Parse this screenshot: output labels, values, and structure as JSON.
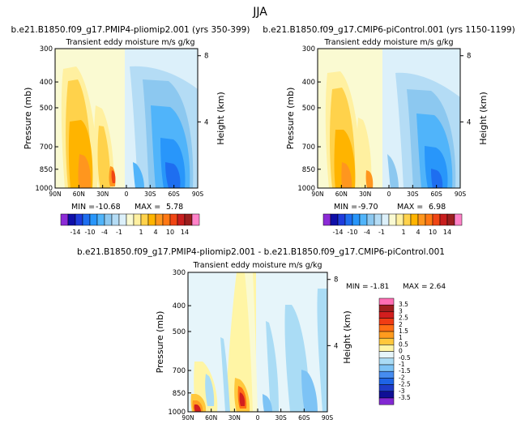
{
  "figure": {
    "title": "JJA"
  },
  "chart_data": [
    {
      "type": "heatmap",
      "id": "pliomip",
      "title": "b.e21.B1850.f09_g17.PMIP4-pliomip2.001 (yrs 350-399)",
      "subtitle": "Transient eddy moisture m/s g/kg",
      "ylabel": "Pressure (mb)",
      "y2label": "Height (km)",
      "x_ticks": [
        "90N",
        "60N",
        "30N",
        "0",
        "30S",
        "60S",
        "90S"
      ],
      "y_ticks": [
        "300",
        "400",
        "500",
        "700",
        "850",
        "1000"
      ],
      "y2_ticks": [
        "8",
        "4"
      ],
      "min_label": "MIN =",
      "min_value": "-10.68",
      "max_label": "MAX =",
      "max_value": "5.78"
    },
    {
      "type": "heatmap",
      "id": "picontrol",
      "title": "b.e21.B1850.f09_g17.CMIP6-piControl.001 (yrs 1150-1199)",
      "subtitle": "Transient eddy moisture m/s g/kg",
      "ylabel": "Pressure (mb)",
      "y2label": "Height (km)",
      "x_ticks": [
        "90N",
        "60N",
        "30N",
        "0",
        "30S",
        "60S",
        "90S"
      ],
      "y_ticks": [
        "300",
        "400",
        "500",
        "700",
        "850",
        "1000"
      ],
      "y2_ticks": [
        "8",
        "4"
      ],
      "min_label": "MIN =",
      "min_value": "-9.70",
      "max_label": "MAX =",
      "max_value": "6.98"
    },
    {
      "type": "heatmap",
      "id": "difference",
      "title": "b.e21.B1850.f09_g17.PMIP4-pliomip2.001 - b.e21.B1850.f09_g17.CMIP6-piControl.001",
      "subtitle": "Transient eddy moisture m/s g/kg",
      "ylabel": "Pressure (mb)",
      "y2label": "Height (km)",
      "x_ticks": [
        "90N",
        "60N",
        "30N",
        "0",
        "30S",
        "60S",
        "90S"
      ],
      "y_ticks": [
        "300",
        "400",
        "500",
        "700",
        "850",
        "1000"
      ],
      "y2_ticks": [
        "8",
        "4"
      ],
      "min_label": "MIN =",
      "min_value": "-1.81",
      "max_label": "MAX =",
      "max_value": "2.64"
    }
  ],
  "colorbar_main": {
    "labels": [
      "-14",
      "-10",
      "-4",
      "-1",
      "1",
      "4",
      "10",
      "14"
    ],
    "colors": [
      "#8c2bd6",
      "#0f0fa8",
      "#1e3cdc",
      "#1e6ef0",
      "#2896fa",
      "#50b4fa",
      "#8cc8f0",
      "#b4dcf5",
      "#dcf0fa",
      "#fafad2",
      "#fff0a0",
      "#ffd24b",
      "#ffb400",
      "#ff961e",
      "#ff7814",
      "#f04614",
      "#c81e1e",
      "#9b1e1e",
      "#ff82c8"
    ]
  },
  "colorbar_diff": {
    "labels": [
      "3.5",
      "3",
      "2.5",
      "2",
      "1.5",
      "1",
      "0.5",
      "0",
      "-0.5",
      "-1",
      "-1.5",
      "-2",
      "-2.5",
      "-3",
      "-3.5"
    ],
    "colors": [
      "#ff6eb4",
      "#a01e1e",
      "#d21e1e",
      "#f03c14",
      "#ff6e14",
      "#ff9b1e",
      "#ffc83c",
      "#fff5a5",
      "#e6f5fa",
      "#aadcf5",
      "#7dc3f5",
      "#468cf0",
      "#1e64e6",
      "#1e3cc8",
      "#0f0f96",
      "#8228d2"
    ]
  }
}
